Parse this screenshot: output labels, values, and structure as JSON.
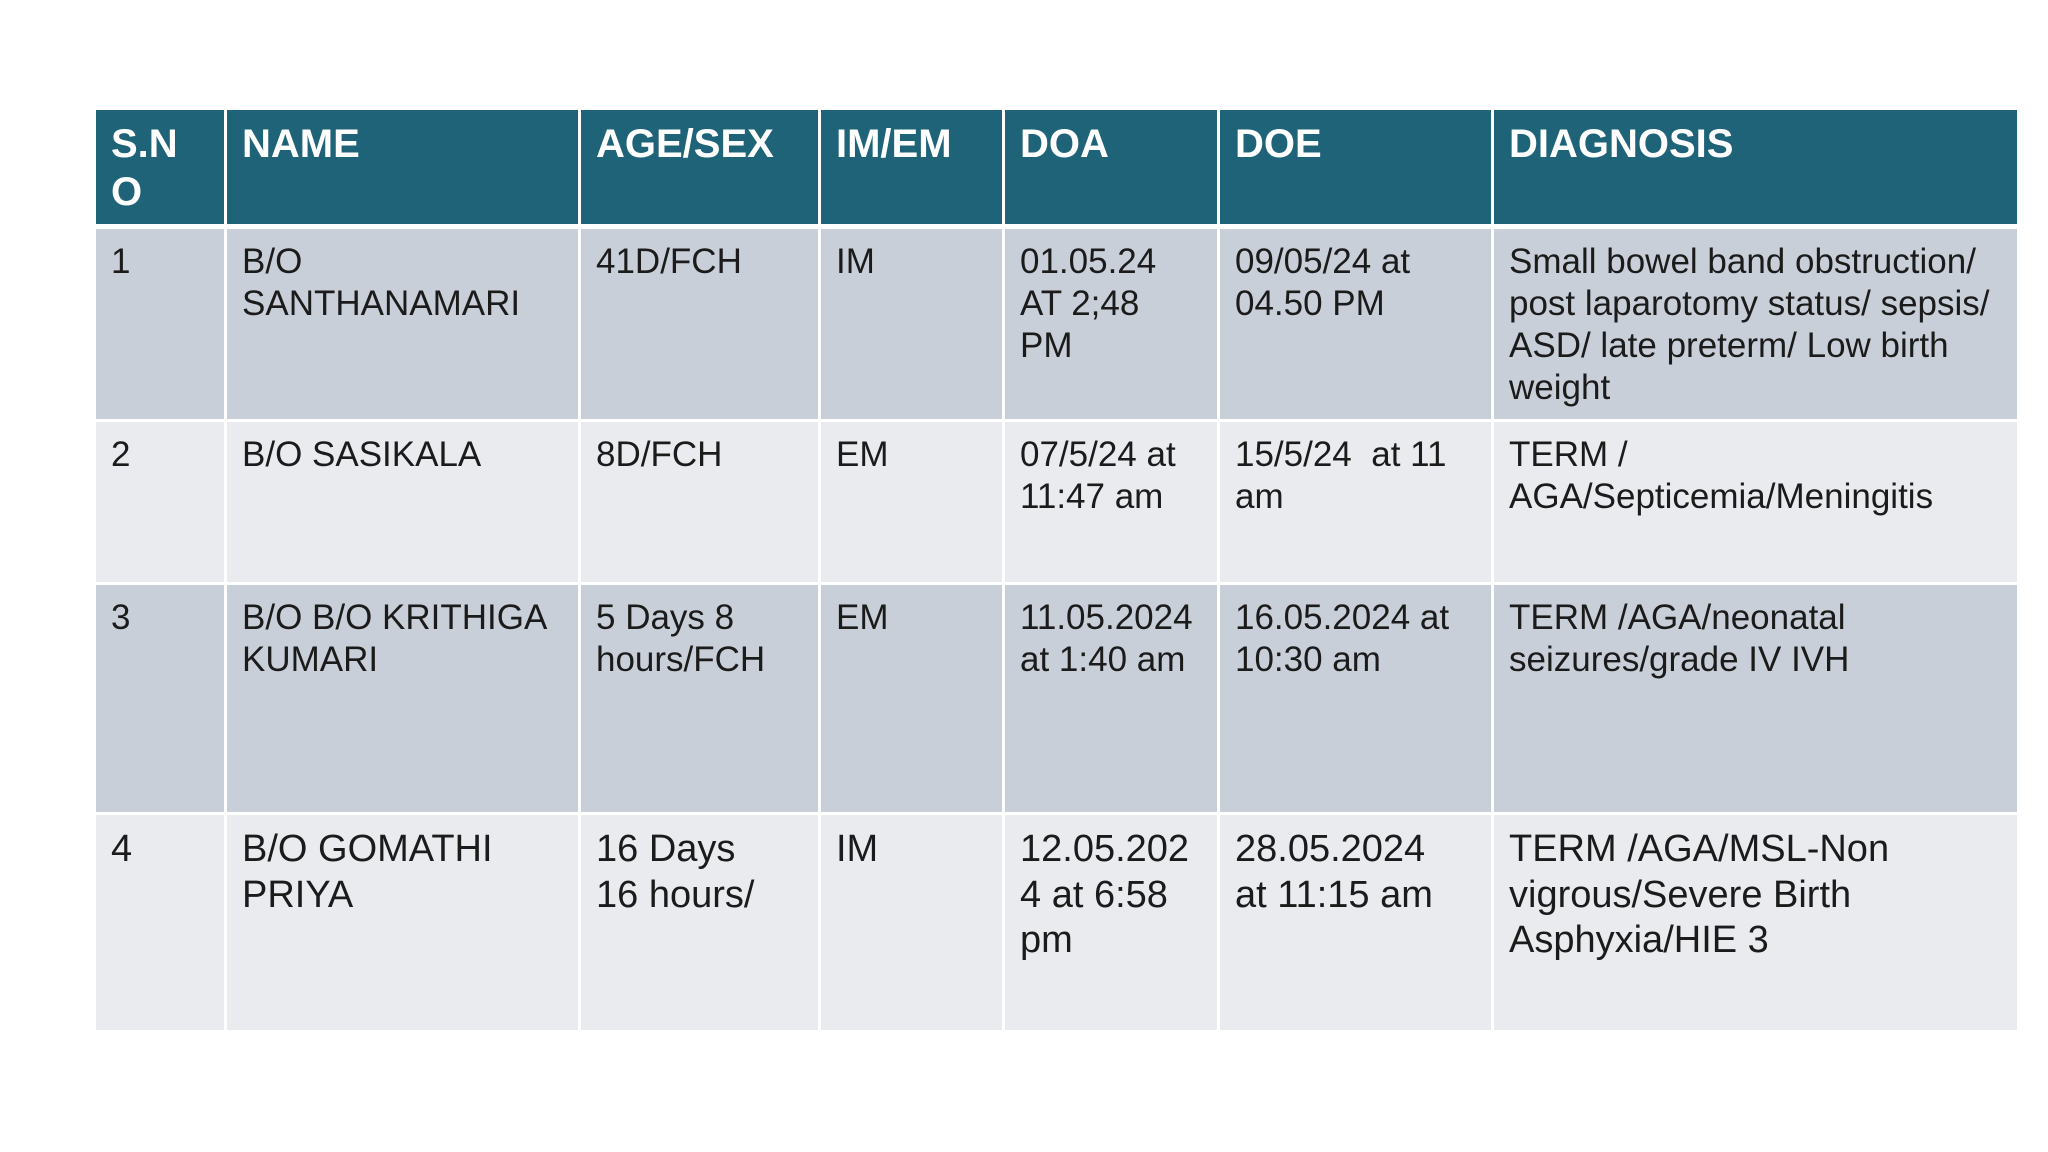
{
  "colors": {
    "header_bg": "#1F6379",
    "header_text": "#FFFFFF",
    "row_odd": "#C9CFD9",
    "row_even": "#E9EBEF",
    "body_text": "#1B1B1B",
    "background": "#FFFFFF"
  },
  "table": {
    "headers": {
      "sno": "S.N\nO",
      "name": "NAME",
      "age_sex": "AGE/SEX",
      "im_em": "IM/EM",
      "doa": "DOA",
      "doe": "DOE",
      "diagnosis": "DIAGNOSIS"
    },
    "rows": [
      {
        "sno": "1",
        "name": "B/O\nSANTHANAMARI",
        "age_sex": "41D/FCH",
        "im_em": "IM",
        "doa": "01.05.24\nAT 2;48\nPM",
        "doe": "09/05/24 at\n04.50 PM",
        "diagnosis": "Small bowel band obstruction/\npost laparotomy status/ sepsis/\nASD/ late preterm/ Low birth\nweight"
      },
      {
        "sno": "2",
        "name": "B/O SASIKALA",
        "age_sex": "8D/FCH",
        "im_em": "EM",
        "doa": "07/5/24 at\n11:47 am",
        "doe": "15/5/24  at 11\nam",
        "diagnosis": "TERM /\nAGA/Septicemia/Meningitis"
      },
      {
        "sno": "3",
        "name": "B/O B/O KRITHIGA\nKUMARI",
        "age_sex": "5 Days 8\nhours/FCH",
        "im_em": "EM",
        "doa": "11.05.2024\nat 1:40 am",
        "doe": "16.05.2024 at\n10:30 am",
        "diagnosis": "TERM /AGA/neonatal\nseizures/grade IV IVH"
      },
      {
        "sno": "4",
        "name": "B/O GOMATHI\nPRIYA",
        "age_sex": "16 Days\n16 hours/",
        "im_em": "IM",
        "doa": "12.05.202\n4 at 6:58\npm",
        "doe": "28.05.2024\nat 11:15 am",
        "diagnosis": "TERM /AGA/MSL-Non\nvigrous/Severe Birth\nAsphyxia/HIE 3"
      }
    ]
  }
}
